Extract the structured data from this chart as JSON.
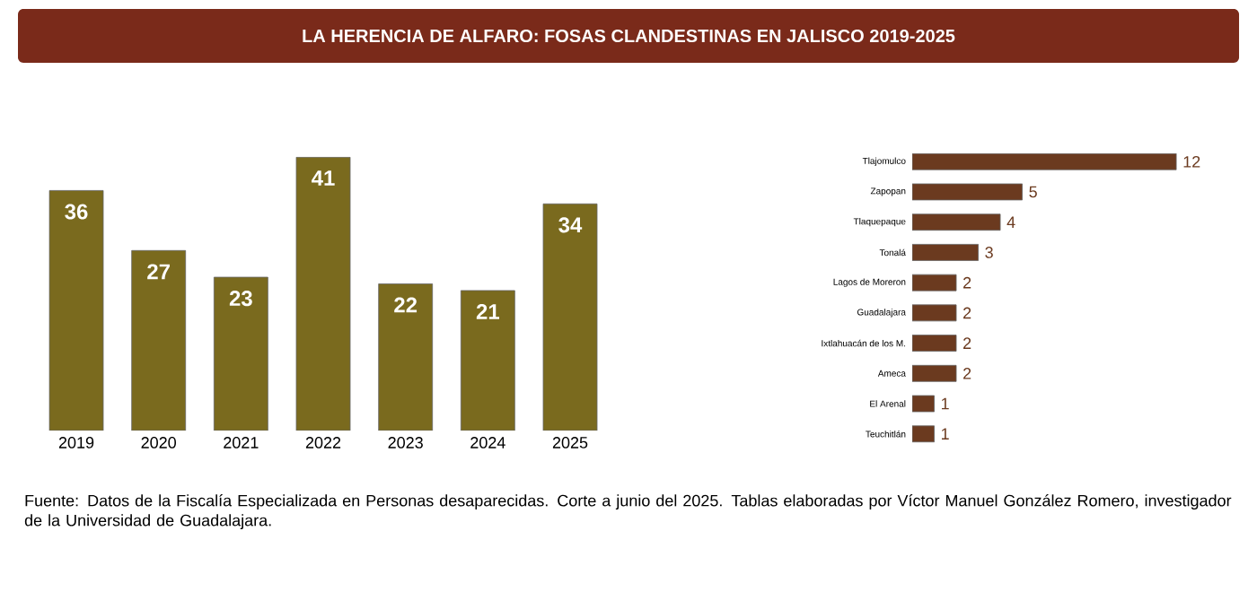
{
  "chart_data": [
    {
      "type": "bar",
      "title": "LA HERENCIA DE ALFARO: FOSAS CLANDESTINAS EN JALISCO 2019-2025",
      "categories": [
        "2019",
        "2020",
        "2021",
        "2022",
        "2023",
        "2024",
        "2025"
      ],
      "values": [
        36,
        27,
        23,
        41,
        22,
        21,
        34
      ],
      "color": "#7a6a1e",
      "data_labels": true,
      "annotations": [
        "Fuente: Datos de la Fiscalía Especializada en Personas desaparecidas. Corte a junio del 2025. Tablas elaboradas por Víctor Manuel González Romero, investigador de la Universidad de Guadalajara."
      ]
    },
    {
      "type": "bar",
      "orientation": "horizontal",
      "categories": [
        "Tlajomulco",
        "Zapopan",
        "Tlaquepaque",
        "Tonalá",
        "Lagos de Moreron",
        "Guadalajara",
        "Ixtlahuacán de los M.",
        "Ameca",
        "El Arenal",
        "Teuchitlán"
      ],
      "values": [
        12,
        5,
        4,
        3,
        2,
        2,
        2,
        2,
        1,
        1
      ],
      "color": "#6b3a1f",
      "data_labels": true
    }
  ]
}
